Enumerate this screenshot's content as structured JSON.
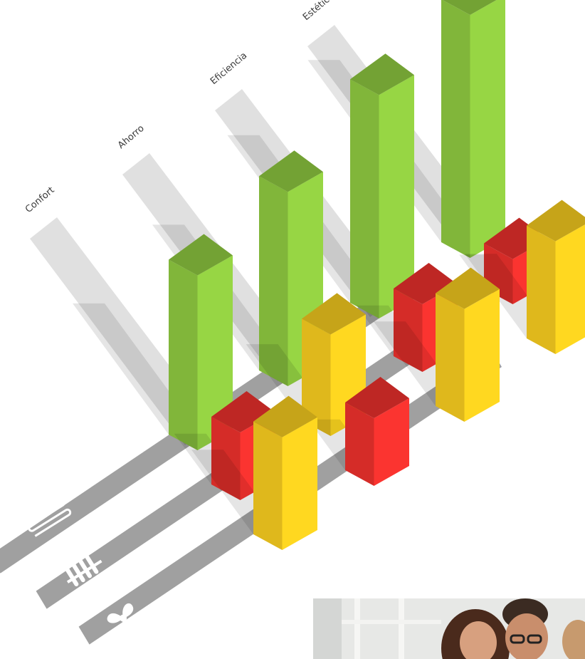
{
  "chart_data": {
    "type": "bar",
    "style": "3d-isometric",
    "categories": [
      "Confort",
      "Ahorro",
      "Eficiencia",
      "Estética"
    ],
    "series": [
      {
        "icon": "underfloor-heating-icon",
        "color": "#8cc63f",
        "values": [
          9,
          10,
          11.5,
          12.5
        ]
      },
      {
        "icon": "radiator-icon",
        "color": "#e8302c",
        "values": [
          3,
          3,
          3,
          2
        ]
      },
      {
        "icon": "fan-coil-icon",
        "color": "#f2c81e",
        "values": [
          5,
          4.5,
          5,
          5
        ]
      }
    ],
    "ylim": [
      0,
      13
    ],
    "grid": false,
    "legend": "icons on floor lanes, bottom-left"
  }
}
